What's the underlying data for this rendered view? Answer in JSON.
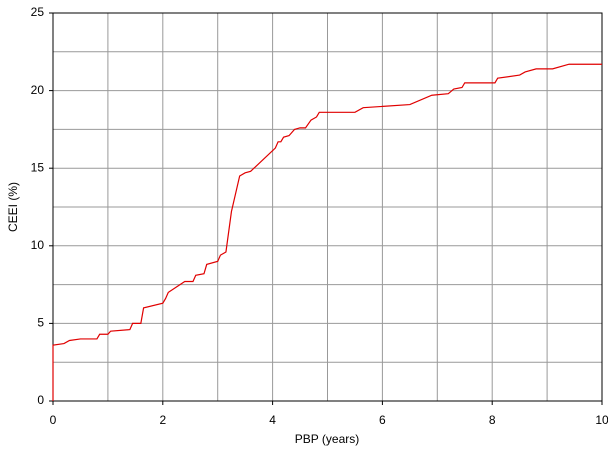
{
  "chart_data": {
    "type": "line",
    "xlabel": "PBP (years)",
    "ylabel": "CEEI (%)",
    "xlim": [
      0,
      10
    ],
    "ylim": [
      0,
      25
    ],
    "xticks": [
      0,
      2,
      4,
      6,
      8,
      10
    ],
    "yticks": [
      0,
      5,
      10,
      15,
      20,
      25
    ],
    "x_minor_ticks": [
      1,
      3,
      5,
      7,
      9
    ],
    "y_minor_ticks": [
      2.5,
      7.5,
      12.5,
      17.5,
      22.5
    ],
    "grid": true,
    "series": [
      {
        "color": "#e00000",
        "x": [
          0,
          0,
          0.2,
          0.3,
          0.5,
          0.8,
          0.85,
          1.0,
          1.05,
          1.4,
          1.45,
          1.6,
          1.65,
          2.0,
          2.05,
          2.1,
          2.4,
          2.55,
          2.6,
          2.75,
          2.8,
          3.0,
          3.05,
          3.15,
          3.25,
          3.4,
          3.5,
          3.6,
          4.05,
          4.1,
          4.15,
          4.2,
          4.3,
          4.4,
          4.5,
          4.6,
          4.7,
          4.8,
          4.85,
          5.5,
          5.65,
          6.5,
          6.9,
          7.2,
          7.3,
          7.45,
          7.5,
          8.05,
          8.1,
          8.5,
          8.6,
          8.8,
          9.1,
          9.4,
          10
        ],
        "values": [
          0,
          3.6,
          3.7,
          3.9,
          4.0,
          4.0,
          4.3,
          4.3,
          4.5,
          4.6,
          5.0,
          5.0,
          6.0,
          6.3,
          6.6,
          7.0,
          7.7,
          7.7,
          8.1,
          8.2,
          8.8,
          9.0,
          9.4,
          9.6,
          12.2,
          14.5,
          14.7,
          14.8,
          16.3,
          16.7,
          16.7,
          17.0,
          17.1,
          17.5,
          17.6,
          17.6,
          18.1,
          18.3,
          18.6,
          18.6,
          18.9,
          19.1,
          19.7,
          19.8,
          20.1,
          20.2,
          20.5,
          20.5,
          20.8,
          21.0,
          21.2,
          21.4,
          21.4,
          21.7,
          21.7
        ]
      }
    ]
  }
}
